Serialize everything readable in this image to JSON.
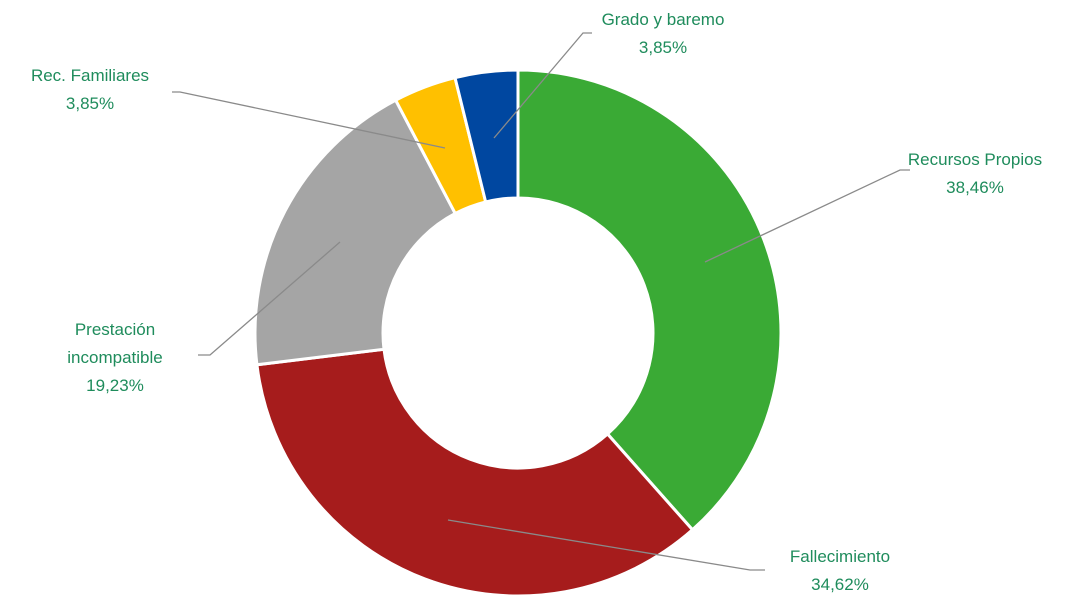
{
  "chart_data": {
    "type": "donut",
    "categories": [
      "Recursos Propios",
      "Fallecimiento",
      "Prestación incompatible",
      "Rec. Familiares",
      "Grado y baremo"
    ],
    "values": [
      38.46,
      34.62,
      19.23,
      3.85,
      3.85
    ],
    "value_labels": [
      "38,46%",
      "34,62%",
      "19,23%",
      "3,85%",
      "3,85%"
    ],
    "colors": [
      "#3aaa35",
      "#a61c1c",
      "#a5a5a5",
      "#ffc000",
      "#0047a0"
    ]
  }
}
